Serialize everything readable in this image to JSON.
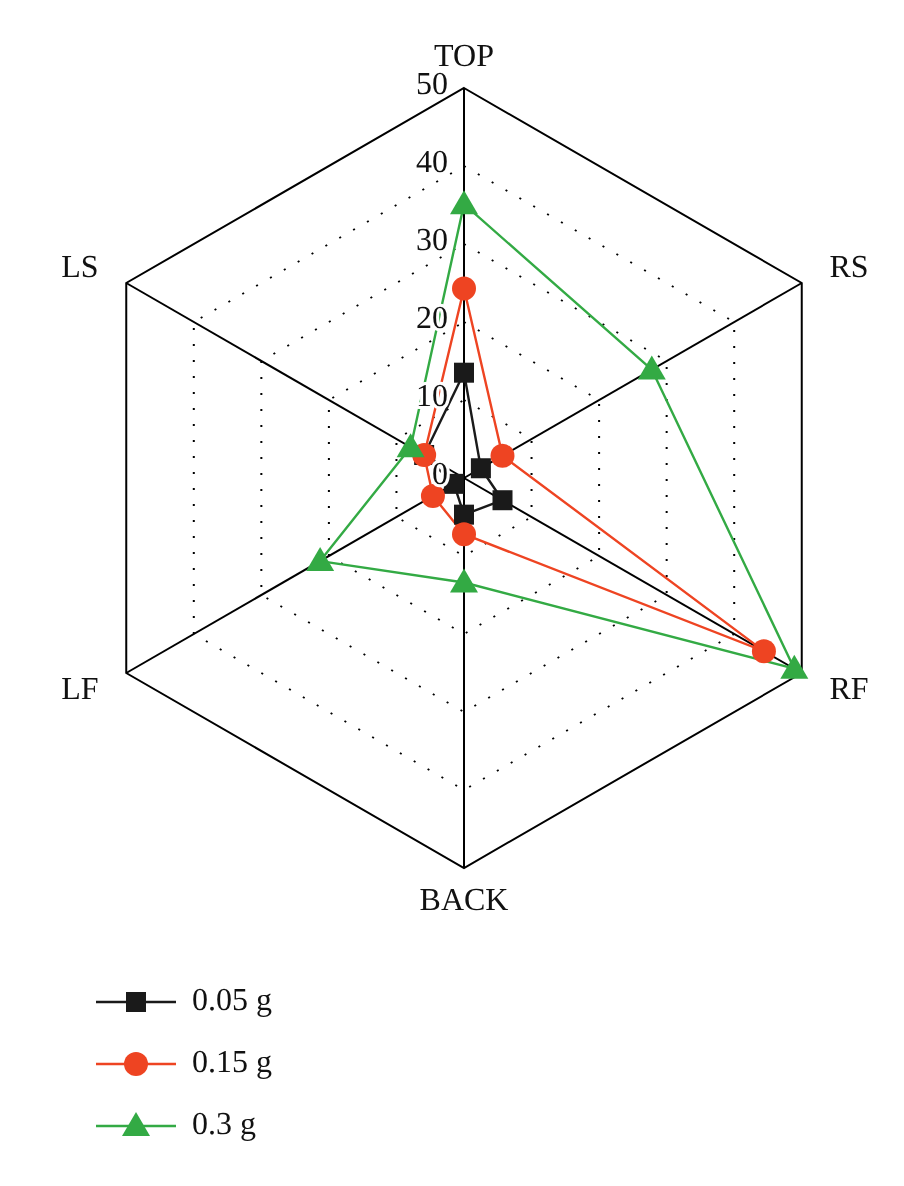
{
  "chart_data": {
    "type": "radar",
    "categories": [
      "TOP",
      "RS",
      "RF",
      "BACK",
      "LF",
      "LS"
    ],
    "series": [
      {
        "name": "0.05 g",
        "color": "#1a1a1a",
        "marker": "square",
        "values": [
          13.5,
          2.5,
          5.7,
          4.7,
          1.5,
          5.9
        ]
      },
      {
        "name": "0.15 g",
        "color": "#ee4422",
        "marker": "circle",
        "values": [
          24.3,
          5.7,
          44.4,
          7.2,
          4.6,
          5.9
        ]
      },
      {
        "name": "0.3 g",
        "color": "#33aa44",
        "marker": "triangle",
        "values": [
          35.1,
          27.8,
          48.9,
          13.4,
          21.3,
          7.9
        ]
      }
    ],
    "ylim": [
      0,
      50
    ],
    "yticks": [
      0,
      10,
      20,
      30,
      40,
      50
    ],
    "grid": true,
    "legend": "bottom left"
  }
}
